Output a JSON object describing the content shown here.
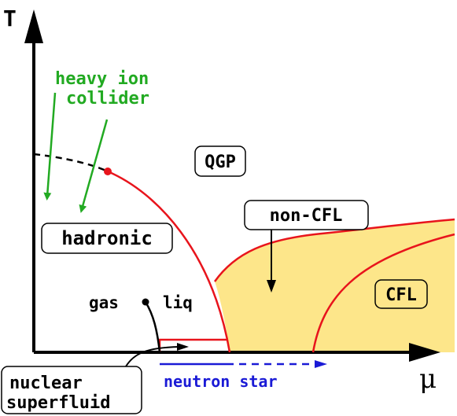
{
  "axes": {
    "y_label": "T",
    "x_label": "μ"
  },
  "labels": {
    "heavy_ion_line1": "heavy ion",
    "heavy_ion_line2": "collider",
    "qgp": "QGP",
    "non_cfl": "non-CFL",
    "hadronic": "hadronic",
    "gas": "gas",
    "liq": "liq",
    "cfl": "CFL",
    "nuclear_line1": "nuclear",
    "nuclear_line2": "superfluid",
    "neutron_star": "neutron star"
  },
  "colors": {
    "axis": "#000000",
    "phase_boundary": "#e8141c",
    "critical_point": "#e8141c",
    "color_superconducting_fill": "#fde68a",
    "heavy_ion_arrows": "#22aa22",
    "neutron_star_arrow": "#1a1ad6",
    "text": "#000000"
  }
}
